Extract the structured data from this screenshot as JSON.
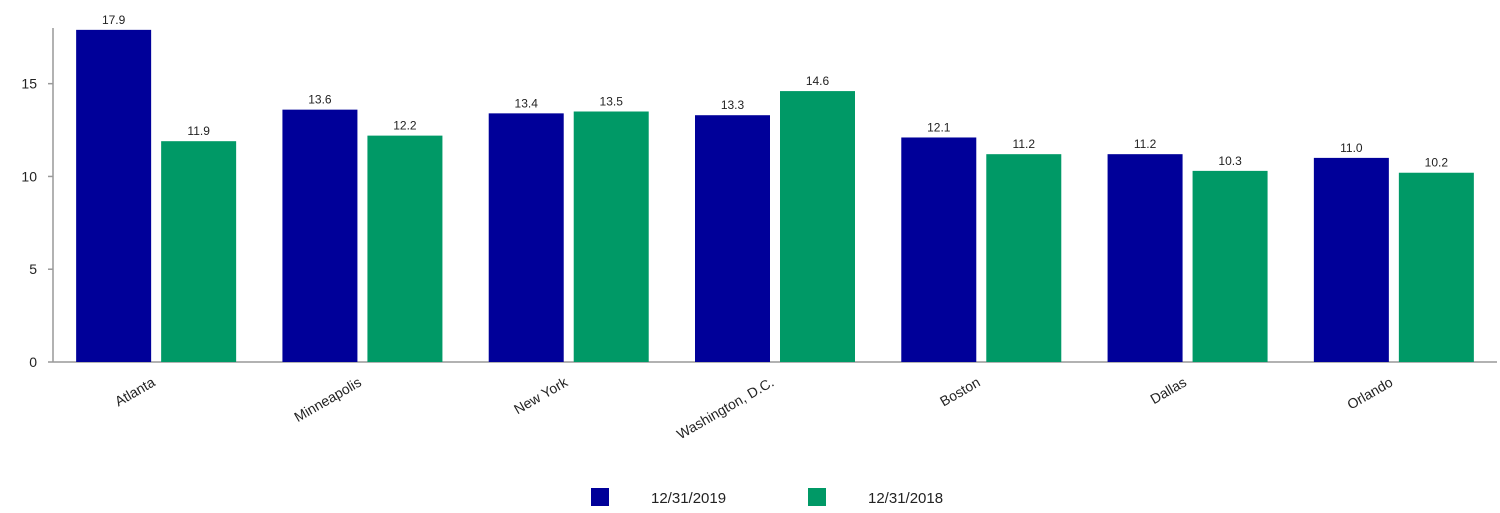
{
  "chart_data": {
    "type": "bar",
    "categories": [
      "Atlanta",
      "Minneapolis",
      "New York",
      "Washington, D.C.",
      "Boston",
      "Dallas",
      "Orlando"
    ],
    "series": [
      {
        "name": "12/31/2019",
        "color": "#000099",
        "values": [
          17.9,
          13.6,
          13.4,
          13.3,
          12.1,
          11.2,
          11.0
        ],
        "labels": [
          "17.9",
          "13.6",
          "13.4",
          "13.3",
          "12.1",
          "11.2",
          "11.0"
        ]
      },
      {
        "name": "12/31/2018",
        "color": "#009966",
        "values": [
          11.9,
          12.2,
          13.5,
          14.6,
          11.2,
          10.3,
          10.2
        ],
        "labels": [
          "11.9",
          "12.2",
          "13.5",
          "14.6",
          "11.2",
          "10.3",
          "10.2"
        ]
      }
    ],
    "ylim": [
      0,
      18
    ],
    "yticks": [
      0,
      5,
      10,
      15
    ],
    "ytick_labels": [
      "0",
      "5",
      "10",
      "15"
    ],
    "grid": false,
    "legend_position": "bottom-center"
  }
}
